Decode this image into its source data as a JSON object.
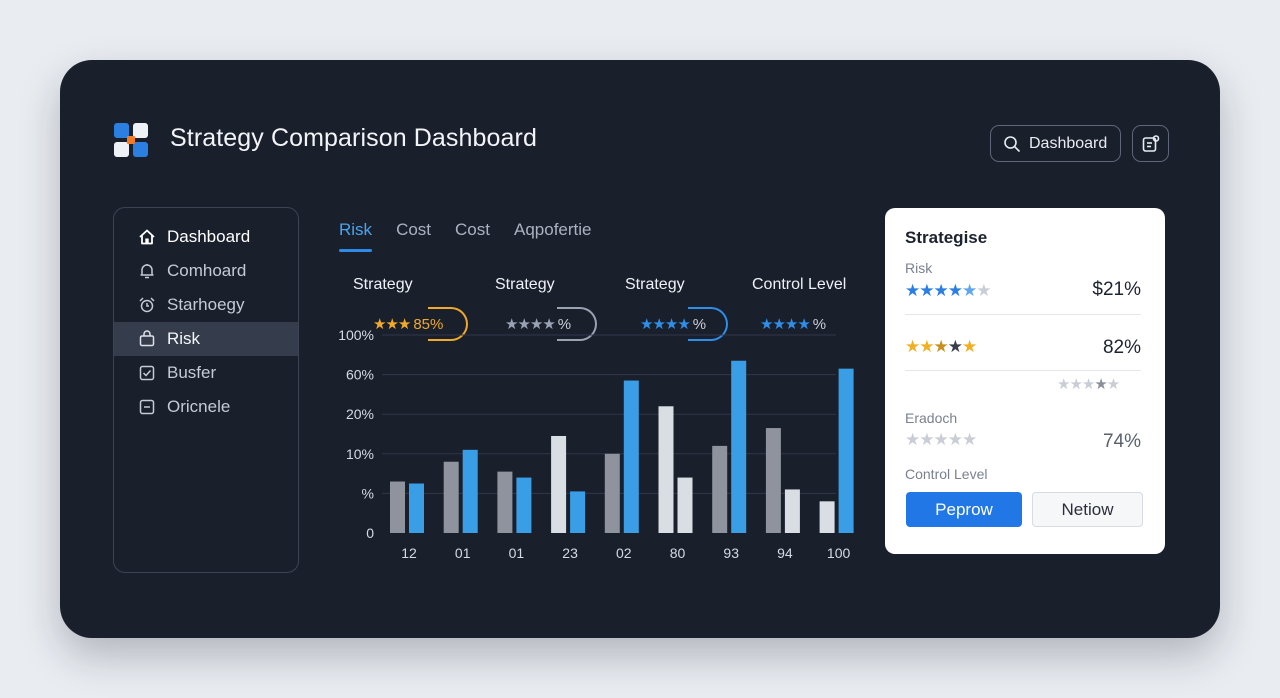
{
  "header": {
    "title": "Strategy Comparison Dashboard",
    "search_label": "Dashboard"
  },
  "sidebar": {
    "items": [
      {
        "label": "Dashboard",
        "icon": "home-icon"
      },
      {
        "label": "Comhoard",
        "icon": "bell-icon"
      },
      {
        "label": "Starhoegy",
        "icon": "alarm-icon"
      },
      {
        "label": "Risk",
        "icon": "bag-icon"
      },
      {
        "label": "Busfer",
        "icon": "checkbox-icon"
      },
      {
        "label": "Oricnele",
        "icon": "square-icon"
      }
    ],
    "active_index": 3
  },
  "tabs": [
    {
      "label": "Risk",
      "active": true
    },
    {
      "label": "Cost",
      "active": false
    },
    {
      "label": "Cost",
      "active": false
    },
    {
      "label": "Aqpofertie",
      "active": false
    }
  ],
  "columns": [
    {
      "heading": "Strategy",
      "stars": "★★★",
      "value": "85%",
      "color": "#f0a92a"
    },
    {
      "heading": "Strategy",
      "stars": "★★★★",
      "value": "%",
      "color": "#9aa3b4"
    },
    {
      "heading": "Strategy",
      "stars": "★★★★",
      "value": "%",
      "color": "#2f8ee8"
    },
    {
      "heading": "Control Level",
      "stars": "★★★★",
      "value": "%",
      "color": "#2f8ee8"
    }
  ],
  "chart_data": {
    "type": "bar",
    "y_ticks": [
      "0",
      "%",
      "10%",
      "20%",
      "60%",
      "100%"
    ],
    "categories": [
      "12",
      "01",
      "01",
      "23",
      "02",
      "80",
      "93",
      "94",
      "100"
    ],
    "series": [
      {
        "color": "#8e939d",
        "values": [
          1.3,
          1.8,
          1.55,
          2.45,
          2.0,
          3.2,
          2.2,
          2.65,
          0.8
        ]
      },
      {
        "color": "#3a9ee6",
        "values": [
          1.25,
          2.1,
          1.4,
          1.05,
          3.85,
          1.4,
          4.35,
          1.1,
          4.15
        ]
      }
    ],
    "grid": true,
    "colors": {
      "gray_bar": "#8e939d",
      "light_bar": "#d9dde4",
      "blue_bar": "#3a9ee6"
    }
  },
  "detail": {
    "title": "Strategise",
    "rows": [
      {
        "label": "Risk",
        "stars": "★★★★★★",
        "value": "$21%"
      },
      {
        "label": "",
        "stars": "★★★★★",
        "value": "82%"
      },
      {
        "label": "",
        "stars": "★★★★★",
        "value": ""
      },
      {
        "label": "Eradoch",
        "stars": "★★★★★",
        "value": "74%"
      }
    ],
    "control_label": "Control Level",
    "primary_button": "Peprow",
    "secondary_button": "Netiow"
  }
}
